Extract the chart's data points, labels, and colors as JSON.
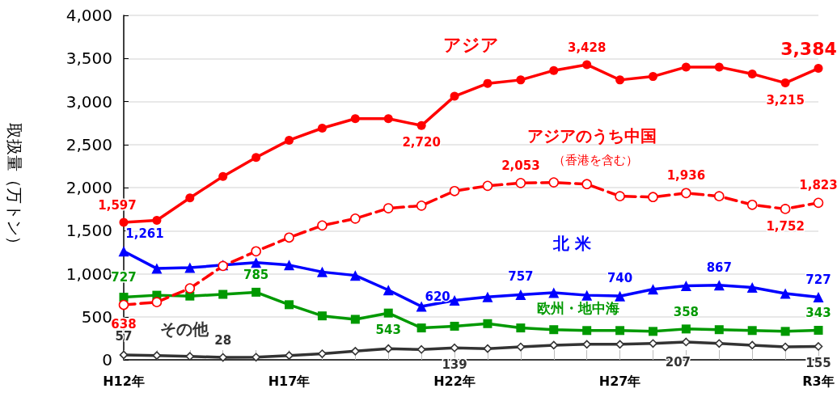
{
  "chart_data": {
    "type": "line",
    "ylabel": "取扱量（万トン）",
    "categories": [
      "H12年",
      null,
      null,
      null,
      null,
      "H17年",
      null,
      null,
      null,
      null,
      "H22年",
      null,
      null,
      null,
      null,
      "H27年",
      null,
      null,
      null,
      null,
      null,
      "R3年"
    ],
    "ylim": [
      0,
      4000
    ],
    "yticks": [
      0,
      500,
      {
        "value": 1000,
        "label": "1,000"
      },
      {
        "value": 1500,
        "label": "1,500"
      },
      {
        "value": 2000,
        "label": "2,000"
      },
      {
        "value": 2500,
        "label": "2,500"
      },
      {
        "value": 3000,
        "label": "3,000"
      },
      {
        "value": 3500,
        "label": "3,500"
      },
      {
        "value": 4000,
        "label": "4,000"
      }
    ],
    "grid": "y",
    "legend": false,
    "line_style": "solid",
    "annotations": [
      "（香港を含む）"
    ],
    "series": [
      {
        "name": "アジア",
        "color": "#ff0000",
        "marker": "circle",
        "values": [
          1597,
          1620,
          1880,
          2130,
          2350,
          2550,
          2690,
          2800,
          2800,
          2720,
          3060,
          3210,
          3250,
          3360,
          3428,
          3250,
          3290,
          3400,
          3400,
          3320,
          3215,
          3384
        ],
        "value_labels": [
          "1,597",
          null,
          null,
          null,
          null,
          null,
          null,
          null,
          null,
          "2,720",
          null,
          null,
          null,
          null,
          "3,428",
          null,
          null,
          null,
          null,
          null,
          "3,215",
          "3,384"
        ]
      },
      {
        "name": "アジアのうち中国",
        "color": "#ff0000",
        "marker": "circle",
        "line_style": "dashed",
        "values": [
          638,
          670,
          830,
          1090,
          1260,
          1420,
          1560,
          1640,
          1760,
          1790,
          1960,
          2020,
          2053,
          2060,
          2040,
          1900,
          1890,
          1936,
          1900,
          1800,
          1752,
          1823
        ],
        "value_labels": [
          "638",
          null,
          null,
          null,
          null,
          null,
          null,
          null,
          null,
          null,
          null,
          null,
          "2,053",
          null,
          null,
          null,
          null,
          "1,936",
          null,
          null,
          "1,752",
          "1,823"
        ]
      },
      {
        "name": "北 米",
        "color": "#0000ff",
        "marker": "triangle",
        "values": [
          1261,
          1060,
          1070,
          1100,
          1130,
          1100,
          1020,
          980,
          810,
          620,
          690,
          730,
          757,
          780,
          750,
          740,
          820,
          860,
          867,
          840,
          770,
          727
        ],
        "value_labels": [
          "1,261",
          null,
          null,
          null,
          null,
          null,
          null,
          null,
          null,
          "620",
          null,
          null,
          "757",
          null,
          null,
          "740",
          null,
          null,
          "867",
          null,
          null,
          "727"
        ]
      },
      {
        "name": "欧州・地中海",
        "color": "#009900",
        "marker": "square",
        "values": [
          727,
          750,
          740,
          760,
          785,
          640,
          510,
          470,
          543,
          370,
          390,
          420,
          370,
          350,
          340,
          340,
          330,
          358,
          350,
          340,
          330,
          343
        ],
        "value_labels": [
          "727",
          null,
          null,
          null,
          "785",
          null,
          null,
          null,
          "543",
          null,
          null,
          null,
          null,
          null,
          null,
          null,
          null,
          "358",
          null,
          null,
          null,
          "343"
        ]
      },
      {
        "name": "その他",
        "color": "#333333",
        "marker": "diamond",
        "values": [
          57,
          50,
          40,
          28,
          30,
          50,
          70,
          100,
          130,
          120,
          139,
          130,
          150,
          170,
          180,
          180,
          190,
          207,
          190,
          170,
          150,
          155
        ],
        "value_labels": [
          "57",
          null,
          null,
          "28",
          null,
          null,
          null,
          null,
          null,
          null,
          "139",
          null,
          null,
          null,
          null,
          null,
          null,
          "207",
          null,
          null,
          null,
          "155"
        ]
      }
    ]
  }
}
